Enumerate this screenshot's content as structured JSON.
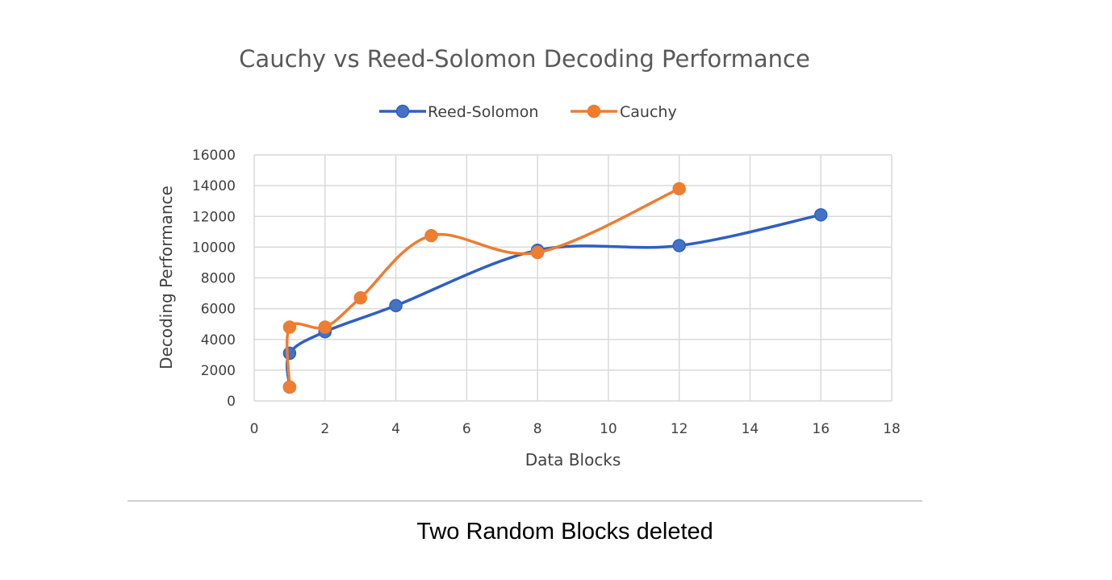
{
  "chart_data": {
    "type": "scatter",
    "subtype": "scatter-smooth-lines-markers",
    "title": "Cauchy vs Reed-Solomon Decoding Performance",
    "xlabel": "Data Blocks",
    "ylabel": "Decoding Performance",
    "xlim": [
      0,
      18
    ],
    "ylim": [
      0,
      16000
    ],
    "x_ticks": [
      "0",
      "2",
      "4",
      "6",
      "8",
      "10",
      "12",
      "14",
      "16",
      "18"
    ],
    "y_ticks": [
      "0",
      "2000",
      "4000",
      "6000",
      "8000",
      "10000",
      "12000",
      "14000",
      "16000"
    ],
    "grid": true,
    "legend_position": "top",
    "series": [
      {
        "name": "Reed-Solomon",
        "color": "#4472c4",
        "line_color": "#2f5fc4",
        "x": [
          1,
          1,
          2,
          4,
          8,
          12,
          16
        ],
        "y": [
          900,
          3100,
          4500,
          6200,
          9800,
          10100,
          12100
        ]
      },
      {
        "name": "Cauchy",
        "color": "#ed7d31",
        "line_color": "#ed7d31",
        "x": [
          1,
          1,
          2,
          3,
          5,
          8,
          12
        ],
        "y": [
          900,
          4800,
          4800,
          6700,
          10750,
          9650,
          13800
        ]
      }
    ]
  },
  "caption": "Two Random Blocks deleted"
}
